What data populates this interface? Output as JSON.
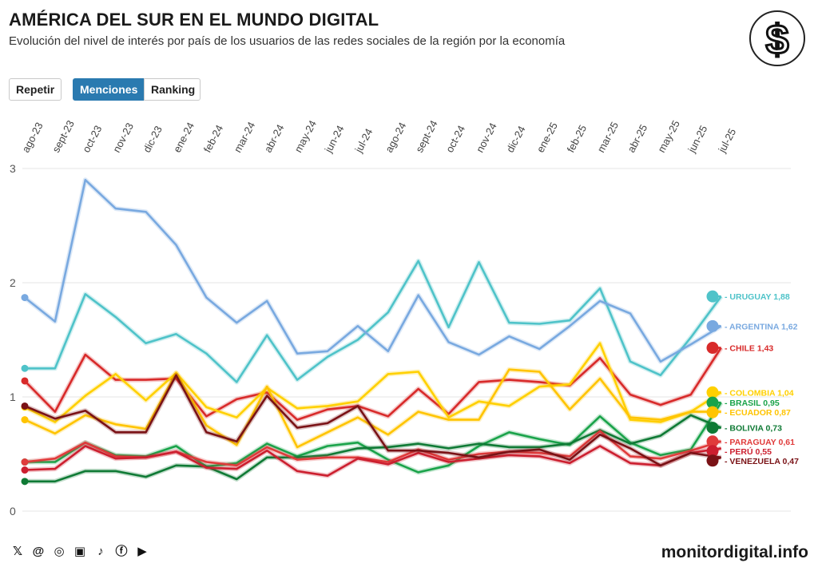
{
  "header": {
    "title": "AMÉRICA DEL SUR EN EL MUNDO DIGITAL",
    "subtitle": "Evolución del nivel de interés por país de los usuarios de las redes sociales de la región por la economía"
  },
  "controls": {
    "repeat_label": "Repetir",
    "mentions_label": "Menciones",
    "ranking_label": "Ranking"
  },
  "footer": {
    "site": "monitordigital.info",
    "social_icons": [
      "x-icon",
      "threads-icon",
      "instagram-icon",
      "news-icon",
      "tiktok-icon",
      "facebook-icon",
      "youtube-icon"
    ]
  },
  "chart_data": {
    "type": "line",
    "title": "AMÉRICA DEL SUR EN EL MUNDO DIGITAL",
    "xlabel": "",
    "ylabel": "",
    "ylim": [
      0,
      3
    ],
    "yticks": [
      0,
      1,
      2,
      3
    ],
    "categories": [
      "ago-23",
      "sept-23",
      "oct-23",
      "nov-23",
      "dic-23",
      "ene-24",
      "feb-24",
      "mar-24",
      "abr-24",
      "may-24",
      "jun-24",
      "jul-24",
      "ago-24",
      "sept-24",
      "oct-24",
      "nov-24",
      "dic-24",
      "ene-25",
      "feb-25",
      "mar-25",
      "abr-25",
      "may-25",
      "jun-25",
      "jul-25"
    ],
    "series": [
      {
        "name": "URUGUAY",
        "label": "URUGUAY 1,88",
        "color": "#4fc3c9",
        "values": [
          1.25,
          1.25,
          1.9,
          1.7,
          1.47,
          1.55,
          1.38,
          1.13,
          1.54,
          1.15,
          1.35,
          1.5,
          1.74,
          2.19,
          1.61,
          2.18,
          1.65,
          1.64,
          1.67,
          1.95,
          1.31,
          1.19,
          1.52,
          1.88
        ]
      },
      {
        "name": "ARGENTINA",
        "label": "ARGENTINA 1,62",
        "color": "#79a9e0",
        "values": [
          1.87,
          1.66,
          2.9,
          2.65,
          2.62,
          2.33,
          1.87,
          1.65,
          1.84,
          1.38,
          1.4,
          1.62,
          1.4,
          1.89,
          1.48,
          1.37,
          1.53,
          1.42,
          1.62,
          1.84,
          1.73,
          1.31,
          1.46,
          1.62
        ]
      },
      {
        "name": "CHILE",
        "label": "CHILE 1,43",
        "color": "#d82a2a",
        "values": [
          1.14,
          0.87,
          1.37,
          1.15,
          1.15,
          1.16,
          0.83,
          0.98,
          1.04,
          0.8,
          0.89,
          0.92,
          0.83,
          1.07,
          0.85,
          1.13,
          1.15,
          1.13,
          1.1,
          1.34,
          1.02,
          0.93,
          1.02,
          1.43
        ]
      },
      {
        "name": "COLOMBIA",
        "label": "COLOMBIA 1,04",
        "color": "#ffd000",
        "values": [
          0.91,
          0.78,
          1.01,
          1.2,
          0.97,
          1.21,
          0.91,
          0.82,
          1.08,
          0.9,
          0.92,
          0.96,
          1.2,
          1.22,
          0.82,
          0.96,
          0.92,
          1.09,
          1.11,
          1.47,
          0.8,
          0.78,
          0.87,
          1.04
        ]
      },
      {
        "name": "BRASIL",
        "label": "BRASIL 0,95",
        "color": "#1aa34a",
        "values": [
          0.43,
          0.43,
          0.6,
          0.49,
          0.48,
          0.57,
          0.39,
          0.42,
          0.59,
          0.48,
          0.57,
          0.6,
          0.45,
          0.34,
          0.4,
          0.57,
          0.69,
          0.63,
          0.58,
          0.83,
          0.6,
          0.49,
          0.54,
          0.95
        ]
      },
      {
        "name": "ECUADOR",
        "label": "ECUADOR 0,87",
        "color": "#ffc400",
        "values": [
          0.8,
          0.68,
          0.84,
          0.76,
          0.72,
          1.21,
          0.75,
          0.58,
          1.09,
          0.56,
          0.69,
          0.82,
          0.67,
          0.87,
          0.8,
          0.8,
          1.24,
          1.22,
          0.89,
          1.16,
          0.82,
          0.8,
          0.87,
          0.87
        ]
      },
      {
        "name": "BOLIVIA",
        "label": "BOLIVIA 0,73",
        "color": "#0f7a35",
        "values": [
          0.26,
          0.26,
          0.35,
          0.35,
          0.3,
          0.4,
          0.39,
          0.28,
          0.47,
          0.47,
          0.49,
          0.55,
          0.56,
          0.59,
          0.55,
          0.59,
          0.56,
          0.56,
          0.59,
          0.71,
          0.59,
          0.66,
          0.84,
          0.73
        ]
      },
      {
        "name": "PARAGUAY",
        "label": "PARAGUAY 0,61",
        "color": "#e03b3b",
        "values": [
          0.43,
          0.46,
          0.6,
          0.48,
          0.47,
          0.52,
          0.43,
          0.4,
          0.56,
          0.45,
          0.47,
          0.47,
          0.43,
          0.54,
          0.45,
          0.5,
          0.52,
          0.51,
          0.48,
          0.7,
          0.48,
          0.46,
          0.53,
          0.61
        ]
      },
      {
        "name": "PERÚ",
        "label": "PERÚ 0,55",
        "color": "#cc1f2f",
        "values": [
          0.36,
          0.37,
          0.57,
          0.46,
          0.47,
          0.52,
          0.38,
          0.37,
          0.53,
          0.35,
          0.31,
          0.46,
          0.41,
          0.51,
          0.43,
          0.46,
          0.49,
          0.48,
          0.42,
          0.57,
          0.42,
          0.4,
          0.51,
          0.55
        ]
      },
      {
        "name": "VENEZUELA",
        "label": "VENEZUELA 0,47",
        "color": "#7a1216",
        "values": [
          0.92,
          0.81,
          0.88,
          0.69,
          0.69,
          1.19,
          0.69,
          0.61,
          1.01,
          0.73,
          0.77,
          0.92,
          0.53,
          0.53,
          0.51,
          0.47,
          0.52,
          0.54,
          0.45,
          0.67,
          0.55,
          0.4,
          0.51,
          0.47
        ]
      }
    ]
  }
}
